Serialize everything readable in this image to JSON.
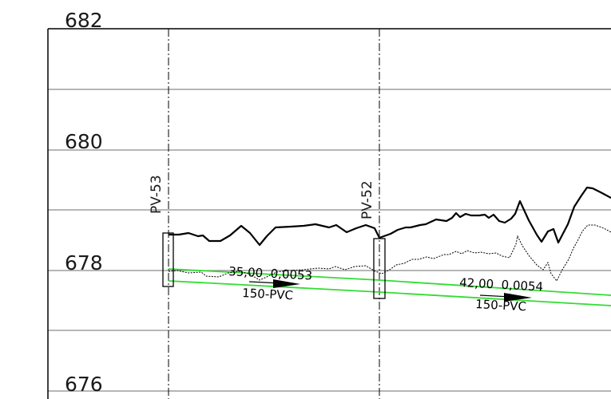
{
  "elevation_axis": {
    "labels": [
      "682",
      "680",
      "678",
      "676"
    ]
  },
  "manholes": [
    {
      "name": "PV-53"
    },
    {
      "name": "PV-52"
    }
  ],
  "pipe_segments": [
    {
      "length_slope": "35,00  0,0053",
      "material": "150-PVC"
    },
    {
      "length_slope": "42,00  0,0054",
      "material": "150-PVC"
    }
  ],
  "colors": {
    "grid": "#8a8a8a",
    "pipe": "#33dd33",
    "ground": "#000000",
    "axis_text": "#1a1a1a"
  }
}
